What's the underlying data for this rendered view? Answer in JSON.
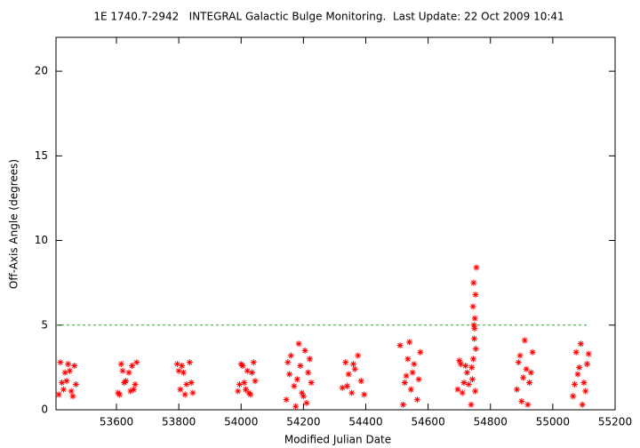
{
  "chart_data": {
    "type": "scatter",
    "title": "1E 1740.7-2942   INTEGRAL Galactic Bulge Monitoring.  Last Update: 22 Oct 2009 10:41",
    "x_label": "Modified Julian Date",
    "y_label": "Off-Axis Angle (degrees)",
    "xlim": [
      53406,
      55200
    ],
    "ylim": [
      0,
      22
    ],
    "xticks": [
      53600,
      53800,
      54000,
      54200,
      54400,
      54600,
      54800,
      55000,
      55200
    ],
    "yticks": [
      0,
      5,
      10,
      15,
      20
    ],
    "grid": false,
    "reference_line": {
      "y": 5,
      "color": "#00c000"
    },
    "series": [
      {
        "color": "#ff0000",
        "x": [
          53415,
          53425,
          53435,
          53445,
          53455,
          53465,
          53420,
          53440,
          53460,
          53430,
          53450,
          53470,
          53605,
          53615,
          53625,
          53640,
          53655,
          53665,
          53610,
          53630,
          53650,
          53660,
          53620,
          53645,
          53795,
          53805,
          53815,
          53825,
          53835,
          53845,
          53800,
          53820,
          53840,
          53810,
          53990,
          54000,
          54010,
          54020,
          54030,
          54040,
          53995,
          54015,
          54035,
          54045,
          54005,
          54025,
          54145,
          54155,
          54160,
          54170,
          54175,
          54185,
          54190,
          54195,
          54205,
          54210,
          54215,
          54225,
          54150,
          54180,
          54200,
          54220,
          54325,
          54335,
          54345,
          54355,
          54365,
          54375,
          54385,
          54395,
          54340,
          54360,
          54510,
          54520,
          54530,
          54540,
          54545,
          54555,
          54565,
          54575,
          54525,
          54550,
          54570,
          54535,
          54695,
          54705,
          54715,
          54725,
          54700,
          54710,
          54720,
          54730,
          54738,
          54742,
          54745,
          54748,
          54750,
          54752,
          54755,
          54740,
          54746,
          54753,
          54744,
          54749,
          54751,
          54747,
          54885,
          54895,
          54900,
          54910,
          54915,
          54925,
          54935,
          54890,
          54905,
          54920,
          54930,
          55065,
          55075,
          55080,
          55090,
          55095,
          55100,
          55110,
          55115,
          55070,
          55085,
          55105
        ],
        "values": [
          0.9,
          1.6,
          2.2,
          2.7,
          1.1,
          2.6,
          2.8,
          1.7,
          0.8,
          1.2,
          2.3,
          1.5,
          1.0,
          2.7,
          1.6,
          2.2,
          1.2,
          2.8,
          0.9,
          1.7,
          2.6,
          1.5,
          2.3,
          1.1,
          2.7,
          1.2,
          2.2,
          1.5,
          2.8,
          1.0,
          2.3,
          0.9,
          1.6,
          2.6,
          1.1,
          2.7,
          1.6,
          2.3,
          0.9,
          2.8,
          1.5,
          1.2,
          2.2,
          1.7,
          2.6,
          1.0,
          0.6,
          2.1,
          3.2,
          1.4,
          0.2,
          3.9,
          2.6,
          1.0,
          3.5,
          0.4,
          2.2,
          1.6,
          2.8,
          1.8,
          0.8,
          3.0,
          1.3,
          2.8,
          2.1,
          1.0,
          2.4,
          3.2,
          1.7,
          0.9,
          1.4,
          2.7,
          3.8,
          0.3,
          2.0,
          4.0,
          1.2,
          2.7,
          0.6,
          3.4,
          1.6,
          2.2,
          1.8,
          3.0,
          1.2,
          2.7,
          1.6,
          2.2,
          2.9,
          1.0,
          2.6,
          1.5,
          0.3,
          1.8,
          3.0,
          4.2,
          5.4,
          6.8,
          8.4,
          2.5,
          7.5,
          3.6,
          6.1,
          4.8,
          1.1,
          5.0,
          1.2,
          3.2,
          0.5,
          4.1,
          2.4,
          1.6,
          3.4,
          2.8,
          1.9,
          0.3,
          2.2,
          0.8,
          3.4,
          2.1,
          3.9,
          0.3,
          1.6,
          2.7,
          3.3,
          1.5,
          2.5,
          1.1
        ]
      }
    ]
  }
}
